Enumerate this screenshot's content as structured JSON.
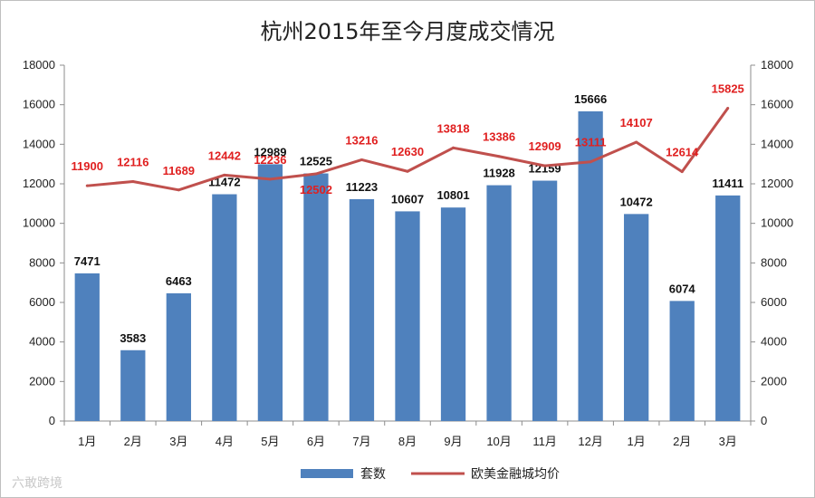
{
  "chart_data": {
    "type": "bar",
    "title": "杭州2015年至今月度成交情况",
    "categories": [
      "1月",
      "2月",
      "3月",
      "4月",
      "5月",
      "6月",
      "7月",
      "8月",
      "9月",
      "10月",
      "11月",
      "12月",
      "1月",
      "2月",
      "3月"
    ],
    "series": [
      {
        "name": "套数",
        "type": "bar",
        "axis": "left",
        "color": "#4f81bd",
        "values": [
          7471,
          3583,
          6463,
          11472,
          12989,
          12525,
          11223,
          10607,
          10801,
          11928,
          12159,
          15666,
          10472,
          6074,
          11411
        ]
      },
      {
        "name": "欧美金融城均价",
        "type": "line",
        "axis": "right",
        "color": "#c0504d",
        "values": [
          11900,
          12116,
          11689,
          12442,
          12236,
          12502,
          13216,
          12630,
          13818,
          13386,
          12909,
          13111,
          14107,
          12614,
          15825
        ]
      }
    ],
    "ylim": [
      0,
      18000
    ],
    "y2lim": [
      0,
      18000
    ],
    "yticks": [
      0,
      2000,
      4000,
      6000,
      8000,
      10000,
      12000,
      14000,
      16000,
      18000
    ],
    "grid": false,
    "legend": "bottom"
  },
  "watermark": "六敢跨境"
}
